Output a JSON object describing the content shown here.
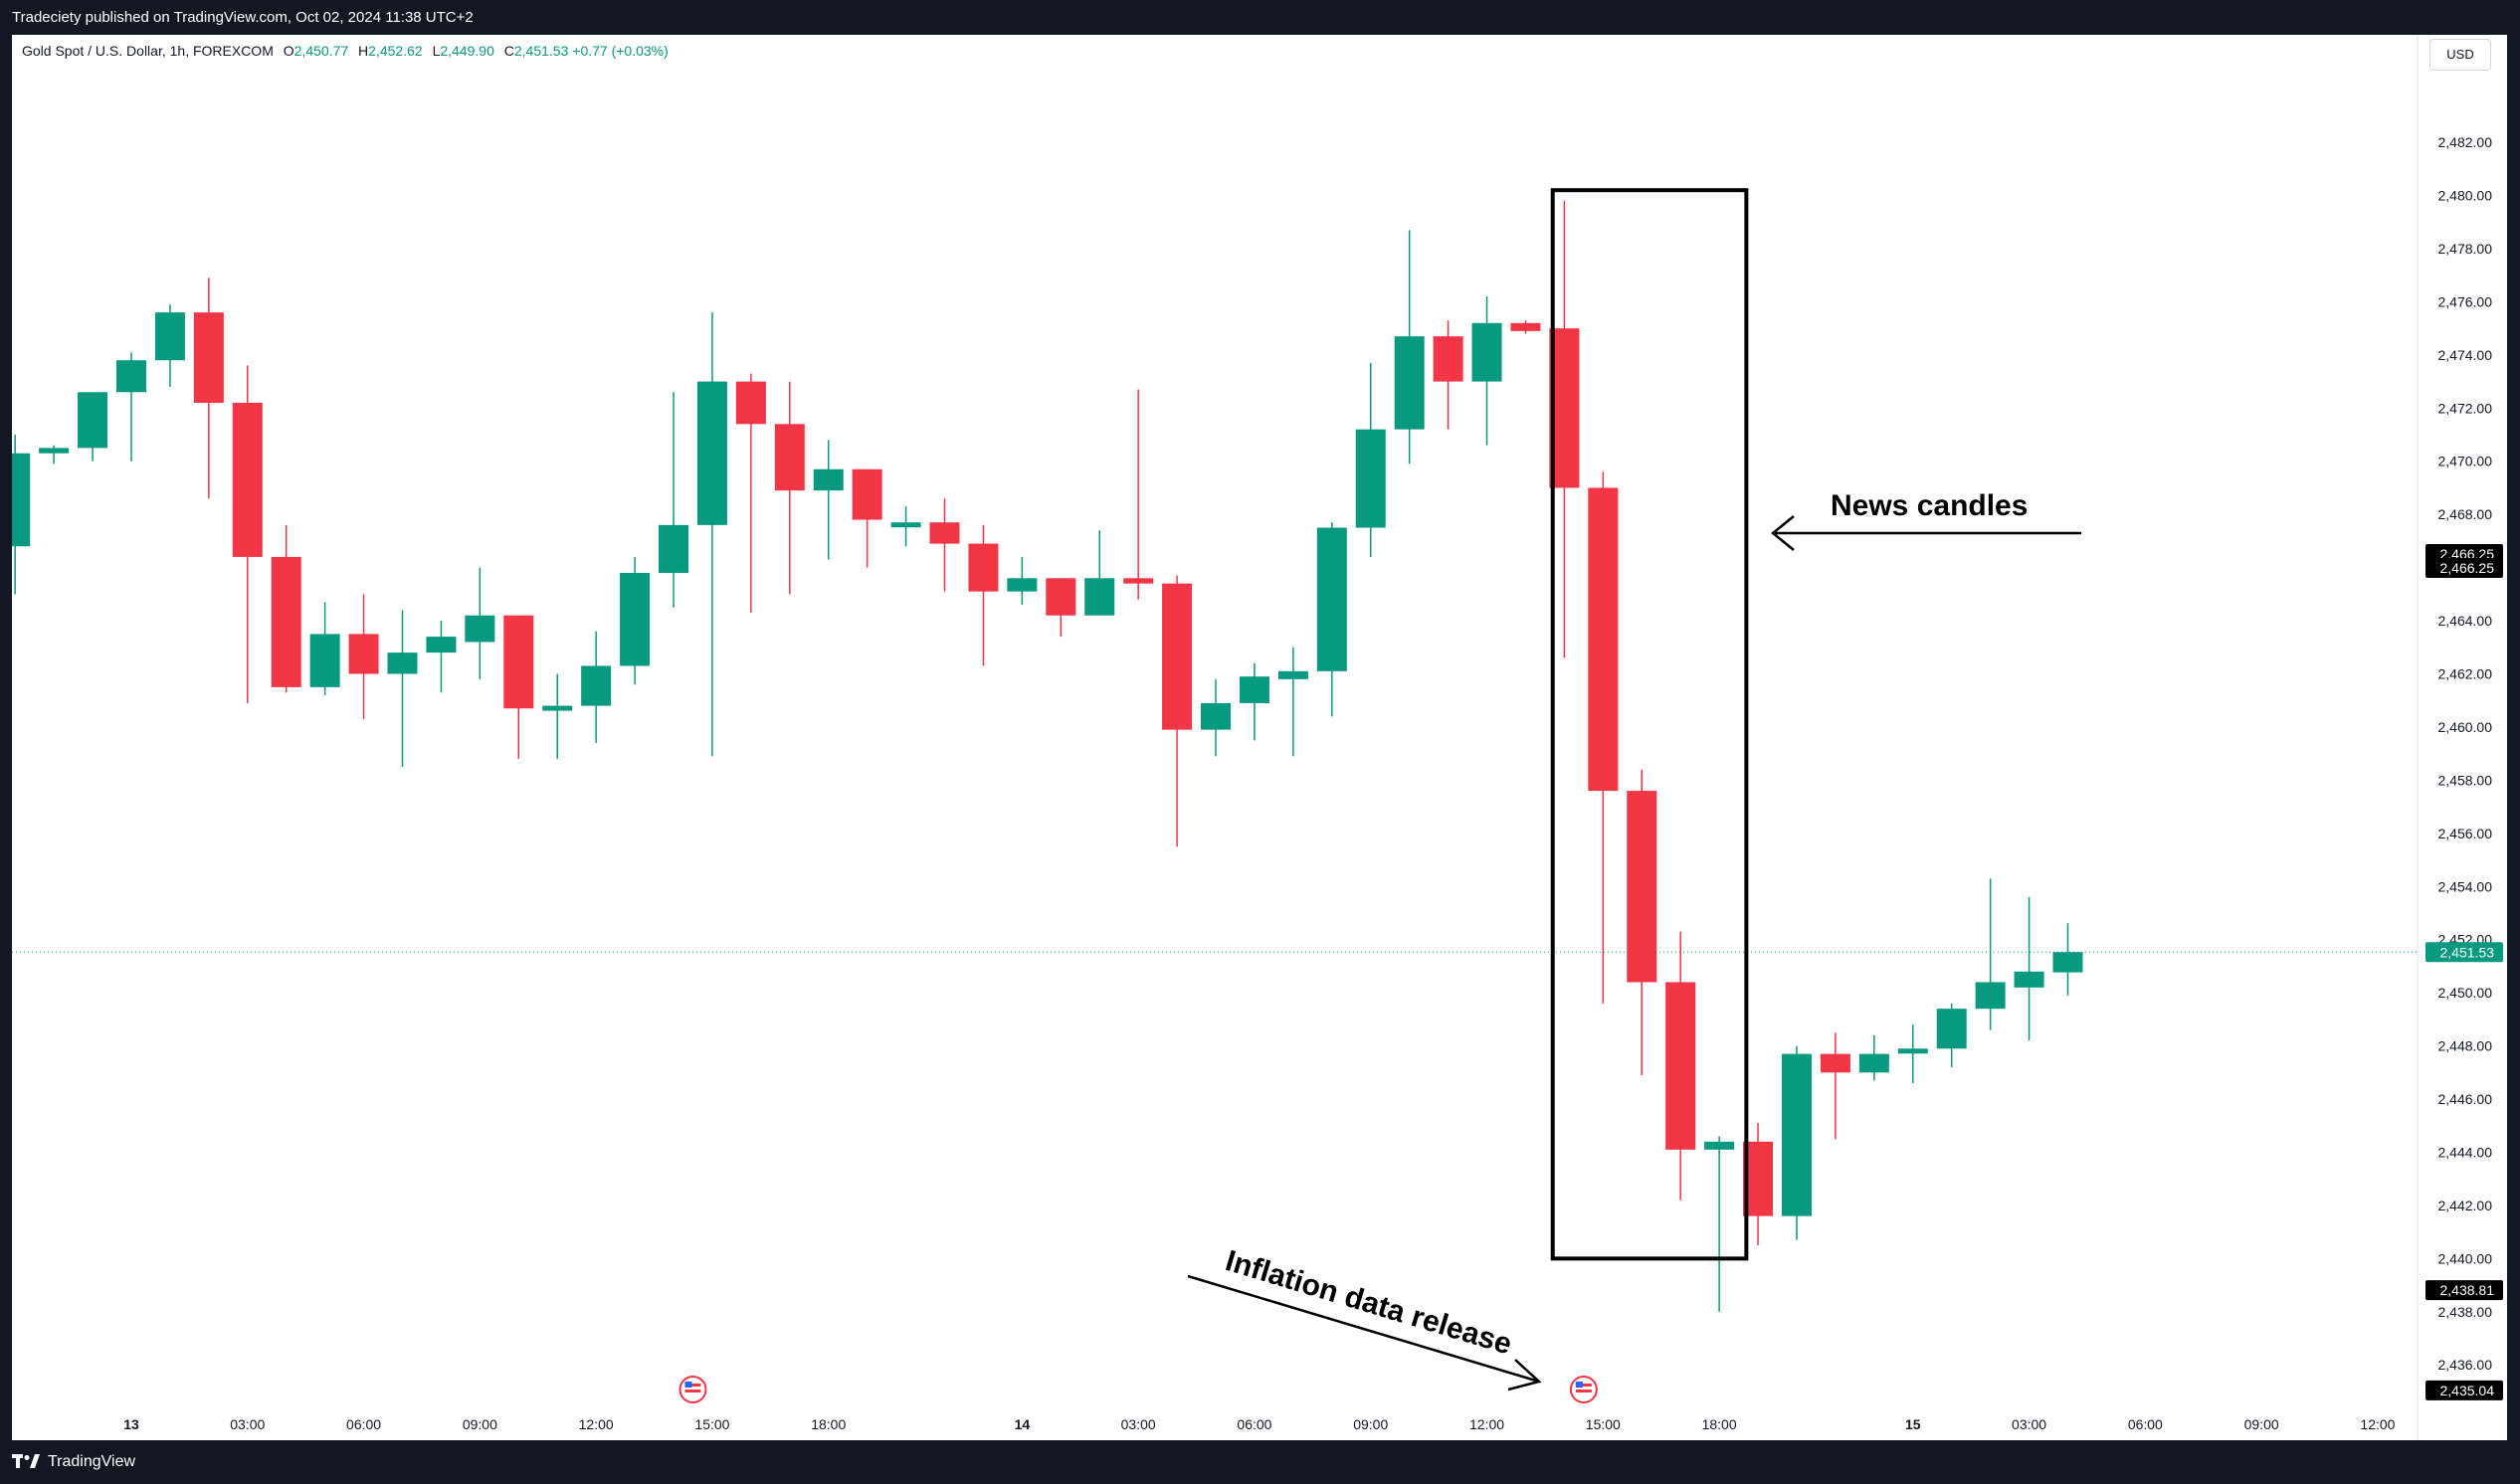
{
  "header": {
    "published": "Tradeciety published on TradingView.com, Oct 02, 2024 11:38 UTC+2"
  },
  "footer": {
    "brand": "TradingView"
  },
  "legend": {
    "symbol": "Gold Spot / U.S. Dollar, 1h, FOREXCOM",
    "o_label": "O",
    "o": "2,450.77",
    "h_label": "H",
    "h": "2,452.62",
    "l_label": "L",
    "l": "2,449.90",
    "c_label": "C",
    "c": "2,451.53",
    "change": "+0.77 (+0.03%)"
  },
  "currency_button": "USD",
  "colors": {
    "up": "#089981",
    "down": "#f23645",
    "bg": "#ffffff",
    "frame": "#131722",
    "text": "#131722"
  },
  "chart_data": {
    "type": "candlestick",
    "ylim": [
      2434.4,
      2483.8
    ],
    "y_ticks": [
      {
        "value": 2436,
        "label": "2,436.00"
      },
      {
        "value": 2438,
        "label": "2,438.00"
      },
      {
        "value": 2440,
        "label": "2,440.00"
      },
      {
        "value": 2442,
        "label": "2,442.00"
      },
      {
        "value": 2444,
        "label": "2,444.00"
      },
      {
        "value": 2446,
        "label": "2,446.00"
      },
      {
        "value": 2448,
        "label": "2,448.00"
      },
      {
        "value": 2450,
        "label": "2,450.00"
      },
      {
        "value": 2452,
        "label": "2,452.00"
      },
      {
        "value": 2454,
        "label": "2,454.00"
      },
      {
        "value": 2456,
        "label": "2,456.00"
      },
      {
        "value": 2458,
        "label": "2,458.00"
      },
      {
        "value": 2460,
        "label": "2,460.00"
      },
      {
        "value": 2462,
        "label": "2,462.00"
      },
      {
        "value": 2464,
        "label": "2,464.00"
      },
      {
        "value": 2466,
        "label": "2,466.00"
      },
      {
        "value": 2468,
        "label": "2,468.00"
      },
      {
        "value": 2470,
        "label": "2,470.00"
      },
      {
        "value": 2472,
        "label": "2,472.00"
      },
      {
        "value": 2474,
        "label": "2,474.00"
      },
      {
        "value": 2476,
        "label": "2,476.00"
      },
      {
        "value": 2478,
        "label": "2,478.00"
      },
      {
        "value": 2480,
        "label": "2,480.00"
      },
      {
        "value": 2482,
        "label": "2,482.00"
      }
    ],
    "x_ticks": [
      {
        "index": 3,
        "label": "13",
        "bold": true
      },
      {
        "index": 6,
        "label": "03:00"
      },
      {
        "index": 9,
        "label": "06:00"
      },
      {
        "index": 12,
        "label": "09:00"
      },
      {
        "index": 15,
        "label": "12:00"
      },
      {
        "index": 18,
        "label": "15:00"
      },
      {
        "index": 21,
        "label": "18:00"
      },
      {
        "index": 26,
        "label": "14",
        "bold": true
      },
      {
        "index": 29,
        "label": "03:00"
      },
      {
        "index": 32,
        "label": "06:00"
      },
      {
        "index": 35,
        "label": "09:00"
      },
      {
        "index": 38,
        "label": "12:00"
      },
      {
        "index": 41,
        "label": "15:00"
      },
      {
        "index": 44,
        "label": "18:00"
      },
      {
        "index": 49,
        "label": "15",
        "bold": true
      },
      {
        "index": 52,
        "label": "03:00"
      },
      {
        "index": 55,
        "label": "06:00"
      },
      {
        "index": 58,
        "label": "09:00"
      },
      {
        "index": 61,
        "label": "12:00"
      }
    ],
    "candles": [
      {
        "o": 2466.8,
        "h": 2471.0,
        "l": 2465.0,
        "c": 2470.3
      },
      {
        "o": 2470.3,
        "h": 2470.6,
        "l": 2469.9,
        "c": 2470.5
      },
      {
        "o": 2470.5,
        "h": 2472.2,
        "l": 2470.0,
        "c": 2472.6
      },
      {
        "o": 2472.6,
        "h": 2474.1,
        "l": 2470.0,
        "c": 2473.8
      },
      {
        "o": 2473.8,
        "h": 2475.9,
        "l": 2472.8,
        "c": 2475.6
      },
      {
        "o": 2475.6,
        "h": 2476.9,
        "l": 2468.6,
        "c": 2472.2
      },
      {
        "o": 2472.2,
        "h": 2473.6,
        "l": 2460.9,
        "c": 2466.4
      },
      {
        "o": 2466.4,
        "h": 2467.6,
        "l": 2461.3,
        "c": 2461.5
      },
      {
        "o": 2461.5,
        "h": 2464.7,
        "l": 2461.2,
        "c": 2463.5
      },
      {
        "o": 2463.5,
        "h": 2465.0,
        "l": 2460.3,
        "c": 2462.0
      },
      {
        "o": 2462.0,
        "h": 2464.4,
        "l": 2458.5,
        "c": 2462.8
      },
      {
        "o": 2462.8,
        "h": 2464.0,
        "l": 2461.3,
        "c": 2463.4
      },
      {
        "o": 2463.2,
        "h": 2466.0,
        "l": 2461.8,
        "c": 2464.2
      },
      {
        "o": 2464.2,
        "h": 2464.2,
        "l": 2458.8,
        "c": 2460.7
      },
      {
        "o": 2460.7,
        "h": 2462.0,
        "l": 2458.8,
        "c": 2460.8
      },
      {
        "o": 2460.8,
        "h": 2463.6,
        "l": 2459.4,
        "c": 2462.3
      },
      {
        "o": 2462.3,
        "h": 2466.4,
        "l": 2461.6,
        "c": 2465.8
      },
      {
        "o": 2465.8,
        "h": 2472.6,
        "l": 2464.5,
        "c": 2467.6
      },
      {
        "o": 2467.6,
        "h": 2475.6,
        "l": 2458.9,
        "c": 2473.0
      },
      {
        "o": 2473.0,
        "h": 2473.3,
        "l": 2464.3,
        "c": 2471.4
      },
      {
        "o": 2471.4,
        "h": 2473.0,
        "l": 2465.0,
        "c": 2468.9
      },
      {
        "o": 2468.9,
        "h": 2470.8,
        "l": 2466.3,
        "c": 2469.7
      },
      {
        "o": 2469.7,
        "h": 2469.7,
        "l": 2466.0,
        "c": 2467.8
      },
      {
        "o": 2467.6,
        "h": 2468.3,
        "l": 2466.8,
        "c": 2467.7
      },
      {
        "o": 2467.7,
        "h": 2468.6,
        "l": 2465.1,
        "c": 2466.9
      },
      {
        "o": 2466.9,
        "h": 2467.6,
        "l": 2462.3,
        "c": 2465.1
      },
      {
        "o": 2465.1,
        "h": 2466.4,
        "l": 2464.6,
        "c": 2465.6
      },
      {
        "o": 2465.6,
        "h": 2465.6,
        "l": 2463.4,
        "c": 2464.2
      },
      {
        "o": 2464.2,
        "h": 2467.4,
        "l": 2464.2,
        "c": 2465.6
      },
      {
        "o": 2465.6,
        "h": 2472.7,
        "l": 2464.8,
        "c": 2465.4
      },
      {
        "o": 2465.4,
        "h": 2465.7,
        "l": 2455.5,
        "c": 2459.9
      },
      {
        "o": 2459.9,
        "h": 2461.8,
        "l": 2458.9,
        "c": 2460.9
      },
      {
        "o": 2460.9,
        "h": 2462.4,
        "l": 2459.5,
        "c": 2461.9
      },
      {
        "o": 2461.8,
        "h": 2463.0,
        "l": 2458.9,
        "c": 2462.1
      },
      {
        "o": 2462.1,
        "h": 2467.7,
        "l": 2460.4,
        "c": 2467.5
      },
      {
        "o": 2467.5,
        "h": 2473.7,
        "l": 2466.4,
        "c": 2471.2
      },
      {
        "o": 2471.2,
        "h": 2478.7,
        "l": 2469.9,
        "c": 2474.7
      },
      {
        "o": 2474.7,
        "h": 2475.3,
        "l": 2471.2,
        "c": 2473.0
      },
      {
        "o": 2473.0,
        "h": 2476.2,
        "l": 2470.6,
        "c": 2475.2
      },
      {
        "o": 2475.2,
        "h": 2475.3,
        "l": 2474.8,
        "c": 2474.9
      },
      {
        "o": 2475.0,
        "h": 2479.8,
        "l": 2462.6,
        "c": 2469.0
      },
      {
        "o": 2469.0,
        "h": 2469.6,
        "l": 2449.6,
        "c": 2457.6
      },
      {
        "o": 2457.6,
        "h": 2458.4,
        "l": 2446.9,
        "c": 2450.4
      },
      {
        "o": 2450.4,
        "h": 2452.3,
        "l": 2442.2,
        "c": 2444.1
      },
      {
        "o": 2444.1,
        "h": 2444.6,
        "l": 2438.0,
        "c": 2444.4
      },
      {
        "o": 2444.4,
        "h": 2445.1,
        "l": 2440.5,
        "c": 2441.6
      },
      {
        "o": 2441.6,
        "h": 2448.0,
        "l": 2440.7,
        "c": 2447.7
      },
      {
        "o": 2447.7,
        "h": 2448.5,
        "l": 2444.5,
        "c": 2447.0
      },
      {
        "o": 2447.0,
        "h": 2448.4,
        "l": 2446.7,
        "c": 2447.7
      },
      {
        "o": 2447.8,
        "h": 2448.8,
        "l": 2446.6,
        "c": 2447.9
      },
      {
        "o": 2447.9,
        "h": 2449.6,
        "l": 2447.2,
        "c": 2449.4
      },
      {
        "o": 2449.4,
        "h": 2454.3,
        "l": 2448.6,
        "c": 2450.4
      },
      {
        "o": 2450.2,
        "h": 2453.6,
        "l": 2448.2,
        "c": 2450.8
      },
      {
        "o": 2450.77,
        "h": 2452.62,
        "l": 2449.9,
        "c": 2451.53
      }
    ],
    "price_labels": [
      {
        "value": 2466.25,
        "label": "2,466.25",
        "style": "dark",
        "offset": -7
      },
      {
        "value": 2466.25,
        "label": "2,466.25",
        "style": "dark",
        "offset": 7
      },
      {
        "value": 2451.53,
        "label": "2,451.53",
        "style": "green",
        "offset": 0
      },
      {
        "value": 2438.81,
        "label": "2,438.81",
        "style": "dark",
        "offset": 0
      },
      {
        "value": 2435.04,
        "label": "2,435.04",
        "style": "dark",
        "offset": 0
      }
    ],
    "current_price": 2451.53,
    "event_markers": [
      17.5,
      40.5
    ],
    "annotations": {
      "box": {
        "i0": 39.7,
        "i1": 44.7,
        "y_top": 2480.2,
        "y_bottom": 2440.0
      },
      "news_text": "News candles",
      "inflation_text": "Inflation data release"
    }
  }
}
